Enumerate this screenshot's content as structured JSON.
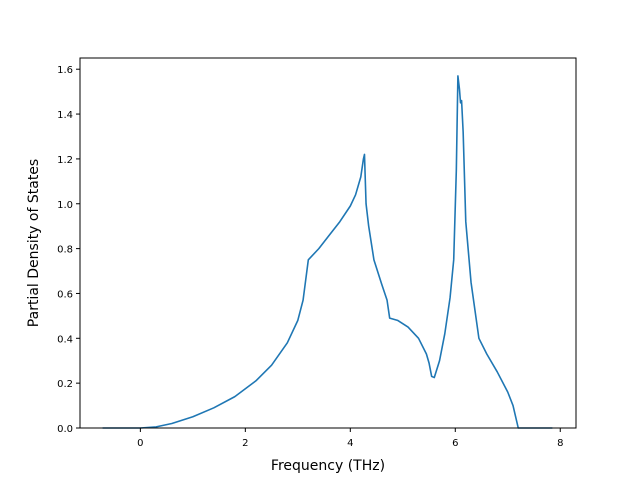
{
  "chart_data": {
    "type": "line",
    "title": "",
    "xlabel": "Frequency (THz)",
    "ylabel": "Partial Density of States",
    "xlim": [
      -1.15,
      8.3
    ],
    "ylim": [
      0.0,
      1.65
    ],
    "xticks": [
      0,
      2,
      4,
      6,
      8
    ],
    "xtick_labels": [
      "0",
      "2",
      "4",
      "6",
      "8"
    ],
    "yticks": [
      0.0,
      0.2,
      0.4,
      0.6,
      0.8,
      1.0,
      1.2,
      1.4,
      1.6
    ],
    "ytick_labels": [
      "0.0",
      "0.2",
      "0.4",
      "0.6",
      "0.8",
      "1.0",
      "1.2",
      "1.4",
      "1.6"
    ],
    "grid": false,
    "line_color": "#1f77b4",
    "series": [
      {
        "x": [
          -0.72,
          0.0,
          0.3,
          0.6,
          1.0,
          1.4,
          1.8,
          2.2,
          2.5,
          2.8,
          3.0,
          3.1,
          3.2,
          3.4,
          3.6,
          3.8,
          4.0,
          4.1,
          4.2,
          4.25,
          4.27,
          4.3,
          4.35,
          4.45,
          4.6,
          4.7,
          4.75,
          4.9,
          5.1,
          5.3,
          5.45,
          5.5,
          5.55,
          5.6,
          5.7,
          5.8,
          5.9,
          5.97,
          6.02,
          6.05,
          6.08,
          6.1,
          6.12,
          6.15,
          6.2,
          6.3,
          6.45,
          6.6,
          6.8,
          7.0,
          7.1,
          7.15,
          7.2,
          7.5,
          7.85
        ],
        "y": [
          0.0,
          0.0,
          0.005,
          0.02,
          0.05,
          0.09,
          0.14,
          0.21,
          0.28,
          0.38,
          0.48,
          0.57,
          0.75,
          0.8,
          0.86,
          0.92,
          0.99,
          1.04,
          1.12,
          1.2,
          1.22,
          1.0,
          0.9,
          0.75,
          0.64,
          0.57,
          0.49,
          0.48,
          0.45,
          0.4,
          0.33,
          0.29,
          0.23,
          0.225,
          0.3,
          0.42,
          0.58,
          0.75,
          1.15,
          1.57,
          1.51,
          1.45,
          1.46,
          1.32,
          0.92,
          0.65,
          0.4,
          0.33,
          0.25,
          0.16,
          0.1,
          0.05,
          0.0,
          0.0,
          0.0
        ]
      }
    ]
  }
}
